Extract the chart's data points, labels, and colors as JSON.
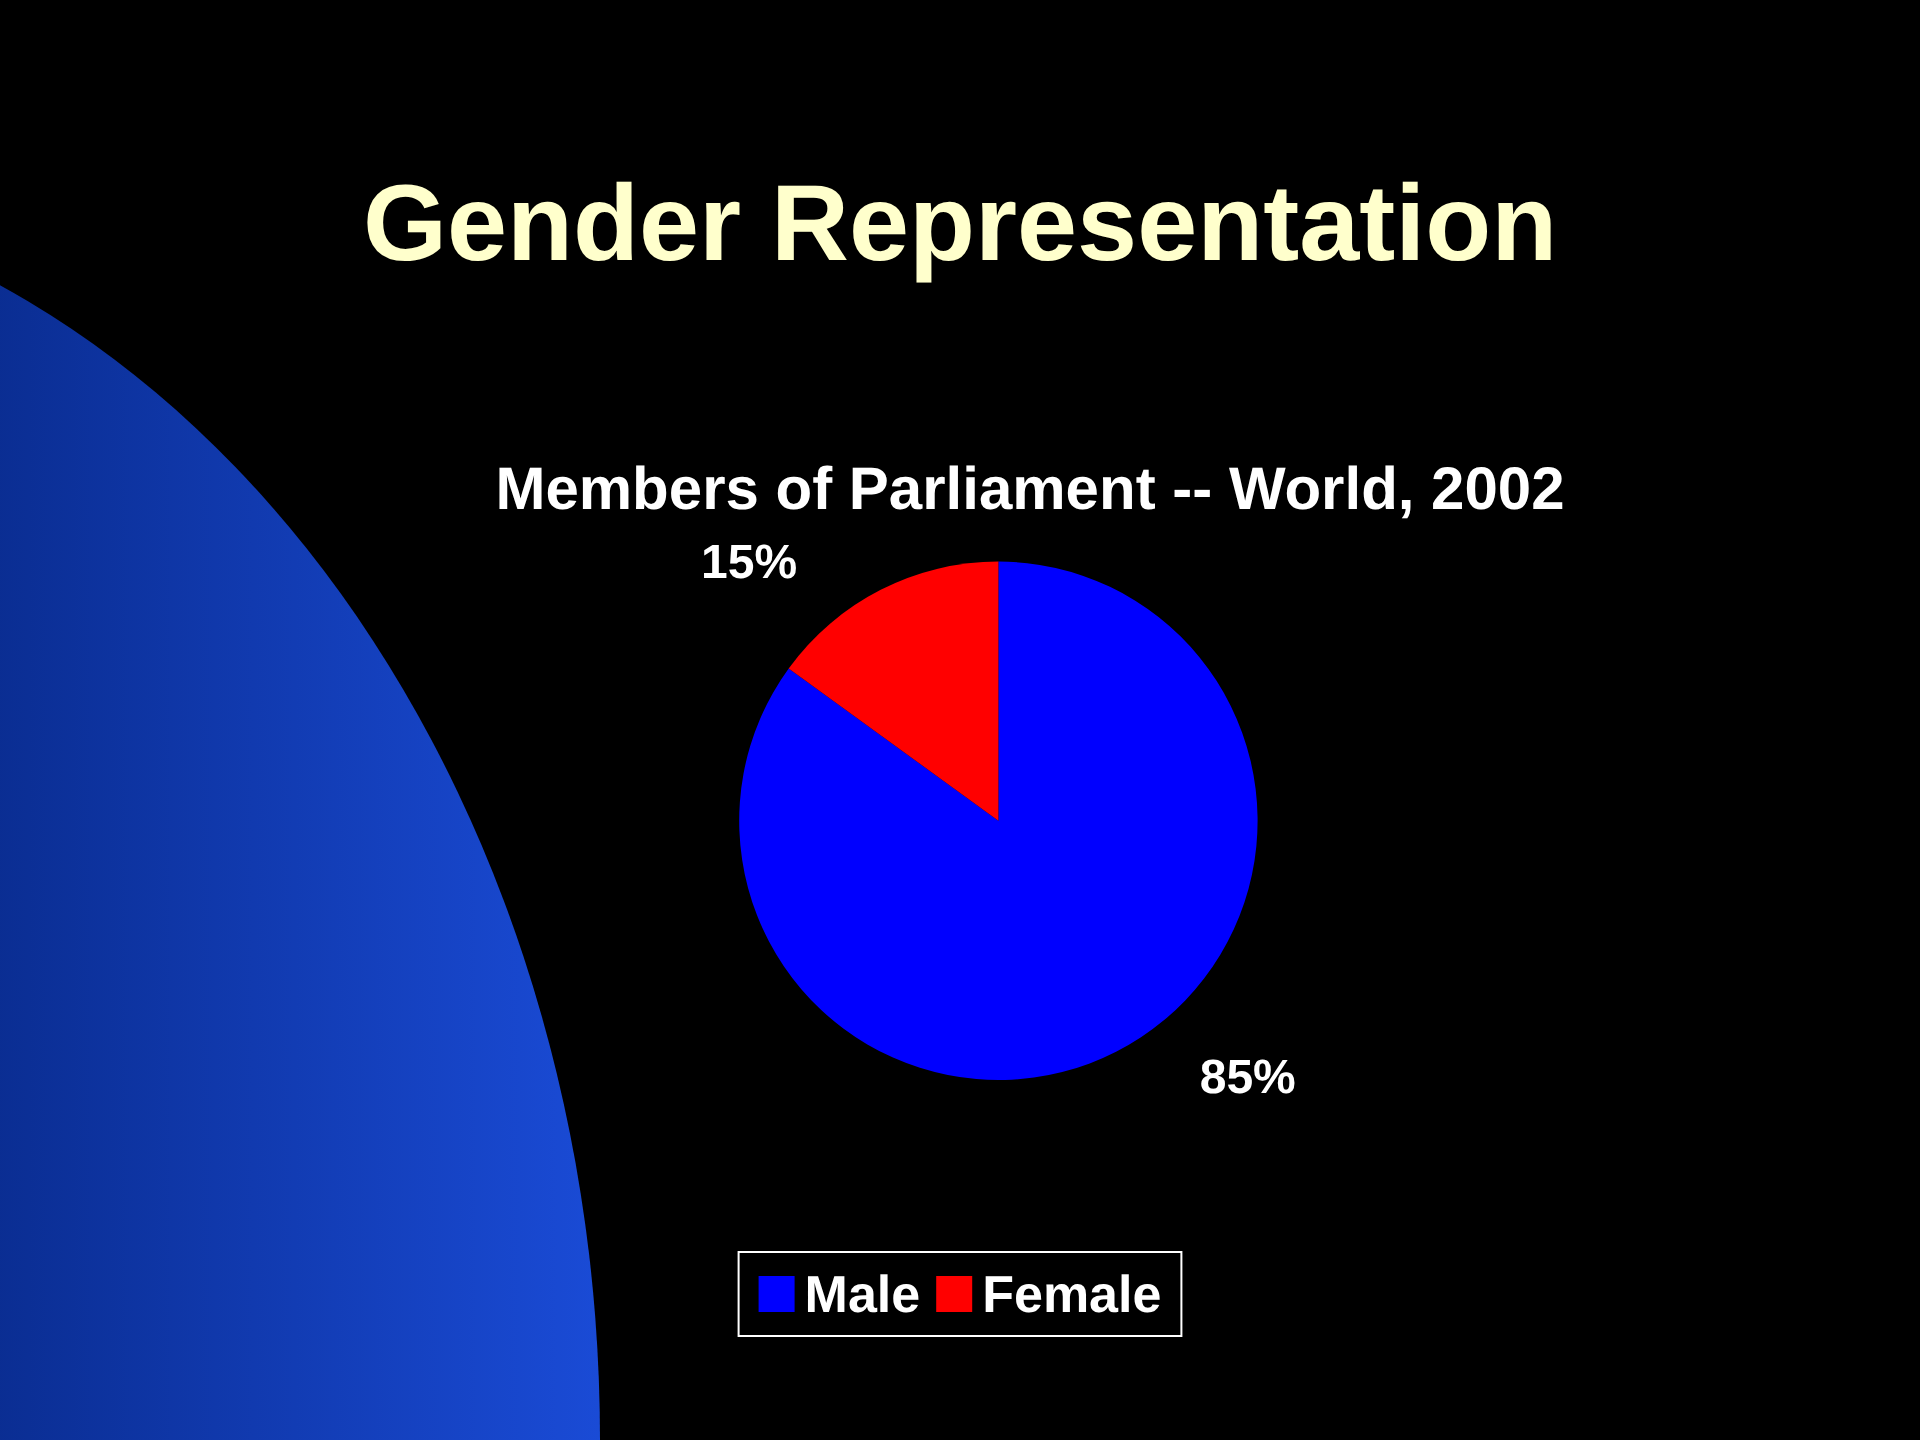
{
  "chart_data": {
    "type": "pie",
    "title": "Gender Representation",
    "subtitle": "Members of Parliament -- World, 2002",
    "categories": [
      "Male",
      "Female"
    ],
    "values": [
      85,
      15
    ],
    "colors": [
      "#0000ff",
      "#ff0000"
    ],
    "value_labels": [
      "85%",
      "15%"
    ],
    "legend": "bottom"
  }
}
